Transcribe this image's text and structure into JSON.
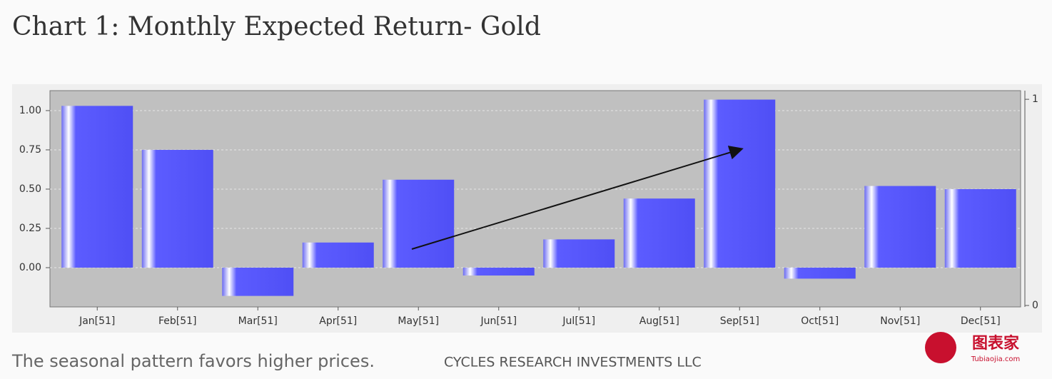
{
  "chart_data": {
    "type": "bar",
    "title": "Chart 1: Monthly Expected Return- Gold",
    "categories": [
      "Jan[51]",
      "Feb[51]",
      "Mar[51]",
      "Apr[51]",
      "May[51]",
      "Jun[51]",
      "Jul[51]",
      "Aug[51]",
      "Sep[51]",
      "Oct[51]",
      "Nov[51]",
      "Dec[51]"
    ],
    "values": [
      1.03,
      0.75,
      -0.18,
      0.16,
      0.56,
      -0.05,
      0.18,
      0.44,
      1.07,
      -0.07,
      0.52,
      0.5
    ],
    "color": "#5555ff",
    "ylim": [
      -0.25,
      1.127
    ],
    "yticks": [
      {
        "value": 0,
        "label": "0.00"
      },
      {
        "value": 0.25,
        "label": "0.25"
      },
      {
        "value": 0.5,
        "label": "0.50"
      },
      {
        "value": 0.75,
        "label": "0.75"
      },
      {
        "value": 1,
        "label": "1.00"
      }
    ],
    "y2lim": [
      -0.007,
      1.042
    ],
    "y2ticks": [
      0,
      1
    ],
    "grid": true,
    "caption": "The seasonal pattern favors higher prices.",
    "source": "CYCLES RESEARCH INVESTMENTS LLC"
  },
  "logo": {
    "name": "图表家",
    "site": "Tubiaojia.com"
  }
}
